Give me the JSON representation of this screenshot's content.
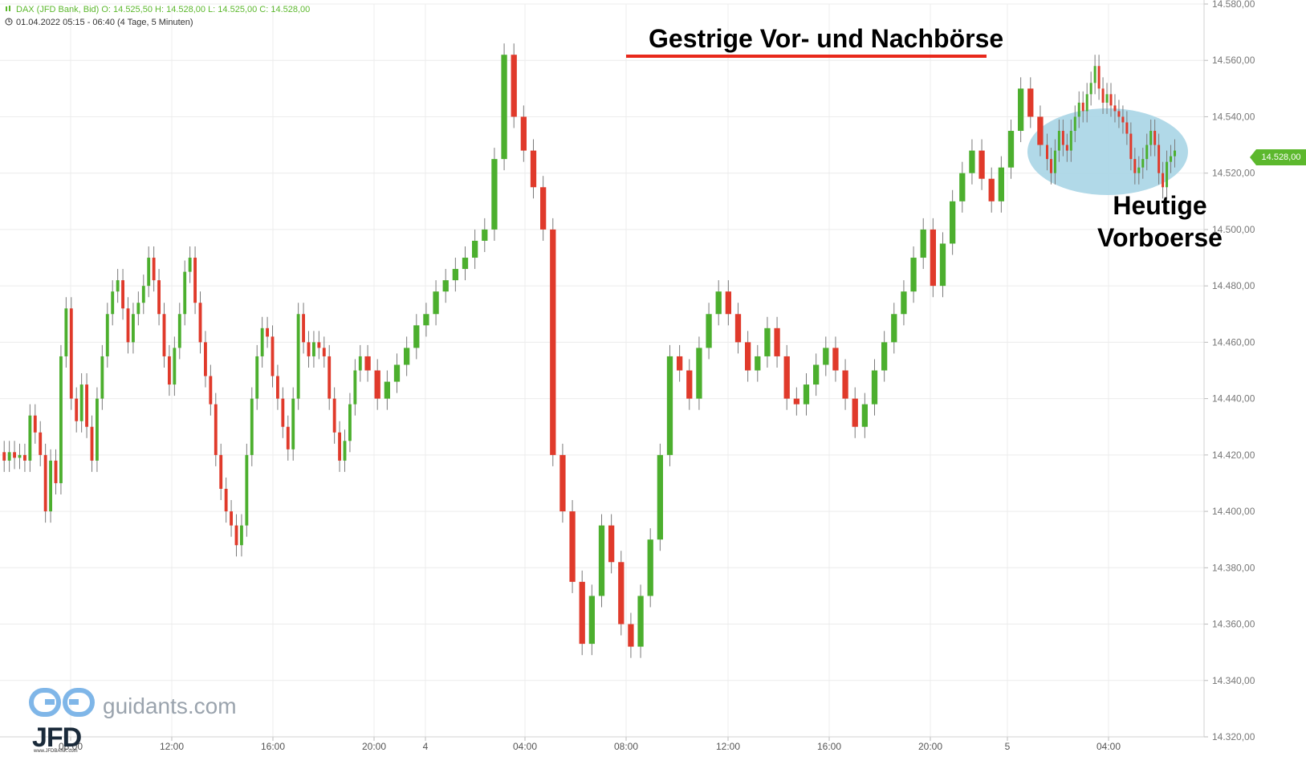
{
  "header": {
    "line1": "DAX (JFD Bank, Bid)   O: 14.525,50   H: 14.528,00   L: 14.525,00   C: 14.528,00",
    "line2": "01.04.2022 05:15 - 06:40   (4 Tage, 5 Minuten)",
    "line1_icon": "candlestick-icon",
    "line2_icon": "clock-icon"
  },
  "annotations": {
    "title": "Gestrige Vor- und Nachbörse",
    "subtitle_line1": "Heutige",
    "subtitle_line2": "Vorboerse"
  },
  "branding": {
    "site": "guidants.com",
    "logo": "JFD",
    "logo_small": "www.JFDBANK.com"
  },
  "current_price": "14.528,00",
  "colors": {
    "up": "#4caf2e",
    "down": "#e03a2b",
    "wick": "#7a7a7a",
    "grid": "#ececec",
    "highlight": "#a9d5e6",
    "underline": "#e8281b",
    "price_tag": "#5cb82d"
  },
  "chart_data": {
    "type": "candlestick",
    "title": "DAX (JFD Bank, Bid)",
    "interval": "5 Minuten",
    "ylim": [
      14320,
      14580
    ],
    "y_ticks": [
      "14.320,00",
      "14.340,00",
      "14.360,00",
      "14.380,00",
      "14.400,00",
      "14.420,00",
      "14.440,00",
      "14.460,00",
      "14.480,00",
      "14.500,00",
      "14.520,00",
      "14.540,00",
      "14.560,00",
      "14.580,00"
    ],
    "x_ticks": [
      "08:00",
      "12:00",
      "16:00",
      "20:00",
      "4",
      "04:00",
      "08:00",
      "12:00",
      "16:00",
      "20:00",
      "5",
      "04:00"
    ],
    "grid": true,
    "series": [
      {
        "segment": "day1",
        "points": [
          [
            14421,
            14418
          ],
          [
            14418,
            14421
          ],
          [
            14421,
            14419
          ],
          [
            14419,
            14420
          ],
          [
            14420,
            14418
          ],
          [
            14418,
            14434
          ],
          [
            14434,
            14428
          ],
          [
            14428,
            14420
          ],
          [
            14420,
            14400
          ],
          [
            14400,
            14418
          ],
          [
            14418,
            14410
          ],
          [
            14410,
            14455
          ],
          [
            14455,
            14472
          ],
          [
            14472,
            14440
          ],
          [
            14440,
            14432
          ],
          [
            14432,
            14445
          ],
          [
            14445,
            14430
          ],
          [
            14430,
            14418
          ],
          [
            14418,
            14440
          ],
          [
            14440,
            14455
          ],
          [
            14455,
            14470
          ],
          [
            14470,
            14478
          ],
          [
            14478,
            14482
          ],
          [
            14482,
            14472
          ],
          [
            14472,
            14460
          ],
          [
            14460,
            14470
          ],
          [
            14470,
            14474
          ],
          [
            14474,
            14480
          ],
          [
            14480,
            14490
          ],
          [
            14490,
            14482
          ],
          [
            14482,
            14470
          ],
          [
            14470,
            14455
          ],
          [
            14455,
            14445
          ],
          [
            14445,
            14458
          ],
          [
            14458,
            14470
          ],
          [
            14470,
            14485
          ],
          [
            14485,
            14490
          ],
          [
            14490,
            14474
          ],
          [
            14474,
            14460
          ],
          [
            14460,
            14448
          ],
          [
            14448,
            14438
          ],
          [
            14438,
            14420
          ],
          [
            14420,
            14408
          ],
          [
            14408,
            14400
          ],
          [
            14400,
            14395
          ],
          [
            14395,
            14388
          ],
          [
            14388,
            14395
          ],
          [
            14395,
            14420
          ],
          [
            14420,
            14440
          ],
          [
            14440,
            14455
          ],
          [
            14455,
            14465
          ],
          [
            14465,
            14462
          ],
          [
            14462,
            14448
          ],
          [
            14448,
            14440
          ],
          [
            14440,
            14430
          ],
          [
            14430,
            14422
          ],
          [
            14422,
            14440
          ],
          [
            14440,
            14470
          ],
          [
            14470,
            14460
          ],
          [
            14460,
            14455
          ],
          [
            14455,
            14460
          ],
          [
            14460,
            14458
          ],
          [
            14458,
            14455
          ],
          [
            14455,
            14440
          ],
          [
            14440,
            14428
          ],
          [
            14428,
            14418
          ],
          [
            14418,
            14425
          ],
          [
            14425,
            14438
          ],
          [
            14438,
            14450
          ],
          [
            14450,
            14455
          ]
        ]
      },
      {
        "segment": "day2",
        "points": [
          [
            14455,
            14450
          ],
          [
            14450,
            14440
          ],
          [
            14440,
            14446
          ],
          [
            14446,
            14452
          ],
          [
            14452,
            14458
          ],
          [
            14458,
            14466
          ],
          [
            14466,
            14470
          ],
          [
            14470,
            14478
          ],
          [
            14478,
            14482
          ],
          [
            14482,
            14486
          ],
          [
            14486,
            14490
          ],
          [
            14490,
            14496
          ],
          [
            14496,
            14500
          ],
          [
            14500,
            14525
          ],
          [
            14525,
            14562
          ],
          [
            14562,
            14540
          ],
          [
            14540,
            14528
          ],
          [
            14528,
            14515
          ],
          [
            14515,
            14500
          ],
          [
            14500,
            14420
          ],
          [
            14420,
            14400
          ],
          [
            14400,
            14375
          ],
          [
            14375,
            14353
          ],
          [
            14353,
            14370
          ],
          [
            14370,
            14395
          ],
          [
            14395,
            14382
          ],
          [
            14382,
            14360
          ],
          [
            14360,
            14352
          ],
          [
            14352,
            14370
          ],
          [
            14370,
            14390
          ],
          [
            14390,
            14420
          ],
          [
            14420,
            14455
          ],
          [
            14455,
            14450
          ],
          [
            14450,
            14440
          ],
          [
            14440,
            14458
          ],
          [
            14458,
            14470
          ],
          [
            14470,
            14478
          ],
          [
            14478,
            14470
          ],
          [
            14470,
            14460
          ],
          [
            14460,
            14450
          ],
          [
            14450,
            14455
          ],
          [
            14455,
            14465
          ],
          [
            14465,
            14455
          ],
          [
            14455,
            14440
          ],
          [
            14440,
            14438
          ],
          [
            14438,
            14445
          ],
          [
            14445,
            14452
          ],
          [
            14452,
            14458
          ],
          [
            14458,
            14450
          ],
          [
            14450,
            14440
          ],
          [
            14440,
            14430
          ],
          [
            14430,
            14438
          ],
          [
            14438,
            14450
          ],
          [
            14450,
            14460
          ],
          [
            14460,
            14470
          ],
          [
            14470,
            14478
          ],
          [
            14478,
            14490
          ],
          [
            14490,
            14500
          ],
          [
            14500,
            14480
          ],
          [
            14480,
            14495
          ],
          [
            14495,
            14510
          ],
          [
            14510,
            14520
          ],
          [
            14520,
            14528
          ],
          [
            14528,
            14518
          ],
          [
            14518,
            14510
          ],
          [
            14510,
            14522
          ],
          [
            14522,
            14535
          ],
          [
            14535,
            14550
          ],
          [
            14550,
            14540
          ],
          [
            14540,
            14530
          ]
        ]
      },
      {
        "segment": "day3",
        "points": [
          [
            14530,
            14525
          ],
          [
            14525,
            14520
          ],
          [
            14520,
            14528
          ],
          [
            14528,
            14535
          ],
          [
            14535,
            14530
          ],
          [
            14530,
            14528
          ],
          [
            14528,
            14535
          ],
          [
            14535,
            14540
          ],
          [
            14540,
            14545
          ],
          [
            14545,
            14542
          ],
          [
            14542,
            14548
          ],
          [
            14548,
            14552
          ],
          [
            14552,
            14558
          ],
          [
            14558,
            14550
          ],
          [
            14550,
            14545
          ],
          [
            14545,
            14548
          ],
          [
            14548,
            14544
          ],
          [
            14544,
            14542
          ],
          [
            14542,
            14540
          ],
          [
            14540,
            14538
          ],
          [
            14538,
            14534
          ],
          [
            14534,
            14525
          ],
          [
            14525,
            14520
          ],
          [
            14520,
            14522
          ],
          [
            14522,
            14525
          ],
          [
            14525,
            14530
          ],
          [
            14530,
            14535
          ],
          [
            14535,
            14530
          ],
          [
            14530,
            14520
          ],
          [
            14520,
            14515
          ],
          [
            14515,
            14524
          ],
          [
            14524,
            14526
          ],
          [
            14526,
            14528
          ]
        ]
      }
    ]
  }
}
